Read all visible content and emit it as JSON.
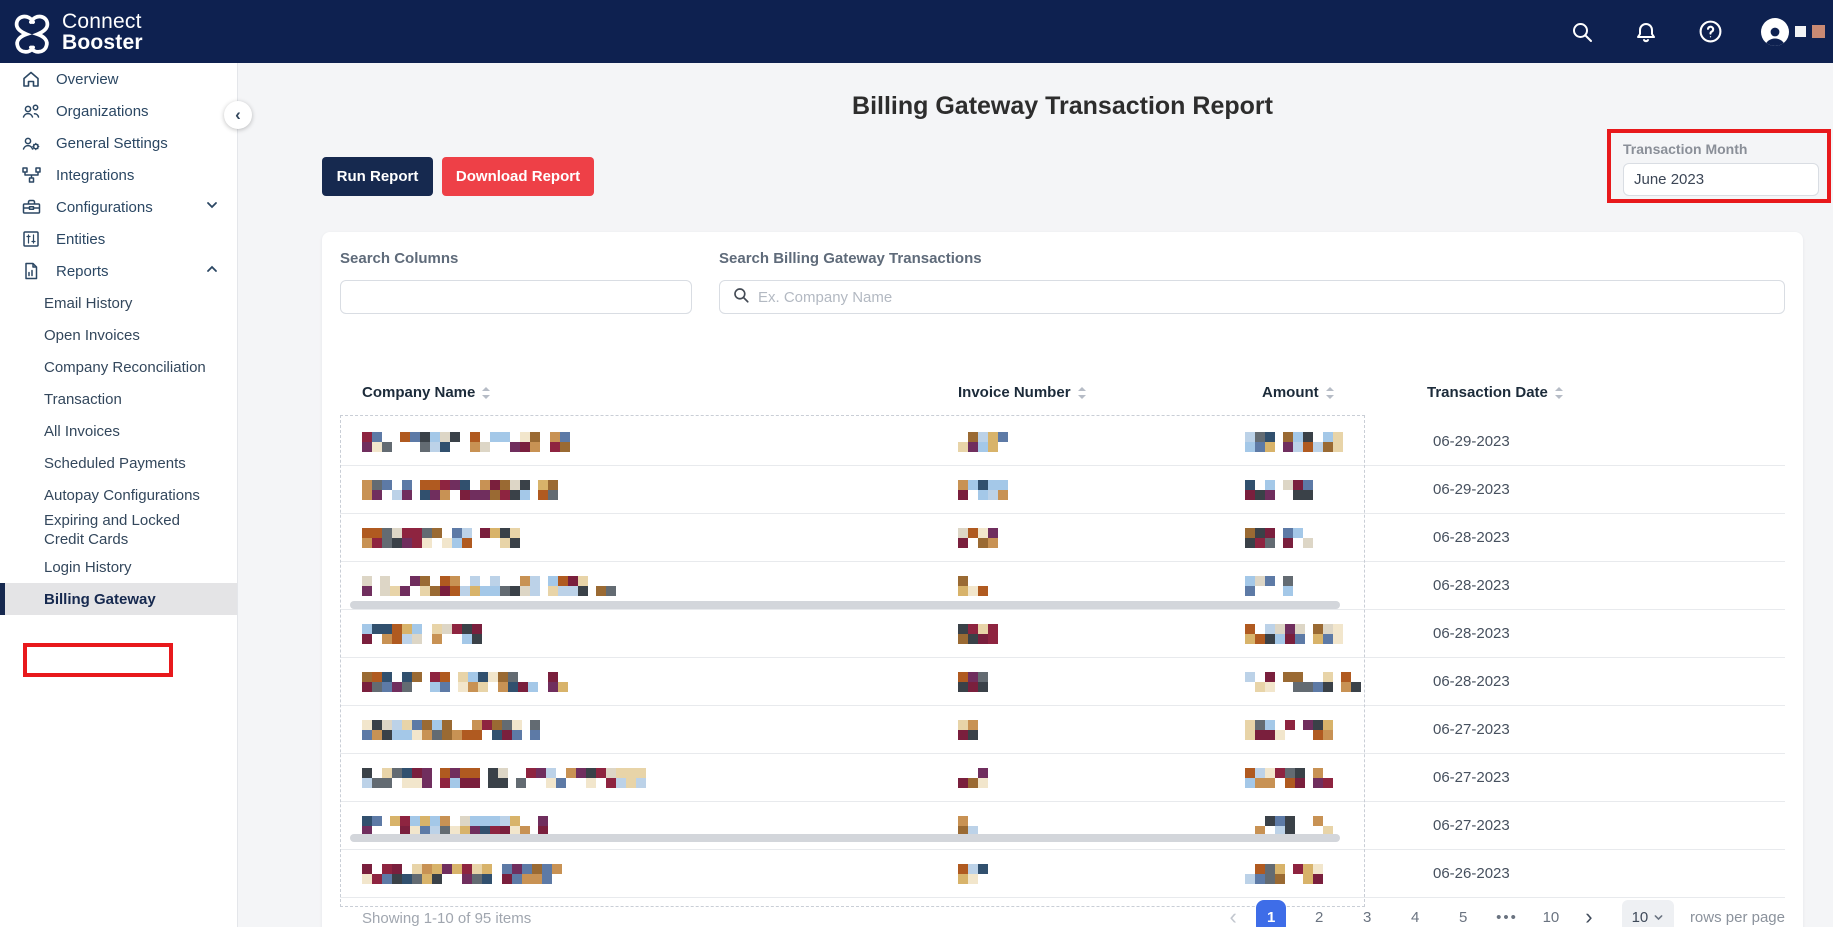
{
  "brand": {
    "line1": "Connect",
    "line2": "Booster"
  },
  "topbar": {
    "icons": [
      "search-icon",
      "bell-icon",
      "help-icon",
      "avatar"
    ]
  },
  "sidebar": {
    "items": [
      {
        "label": "Overview",
        "icon": "home"
      },
      {
        "label": "Organizations",
        "icon": "people"
      },
      {
        "label": "General Settings",
        "icon": "people-gear"
      },
      {
        "label": "Integrations",
        "icon": "integrations"
      },
      {
        "label": "Configurations",
        "icon": "toolbox",
        "chevron": "down"
      },
      {
        "label": "Entities",
        "icon": "entities"
      },
      {
        "label": "Reports",
        "icon": "report",
        "chevron": "up"
      }
    ],
    "report_children": [
      {
        "label": "Email History"
      },
      {
        "label": "Open Invoices"
      },
      {
        "label": "Company Reconciliation"
      },
      {
        "label": "Transaction"
      },
      {
        "label": "All Invoices"
      },
      {
        "label": "Scheduled Payments"
      },
      {
        "label": "Autopay Configurations"
      },
      {
        "label": "Expiring and Locked Credit Cards"
      },
      {
        "label": "Login History"
      },
      {
        "label": "Billing Gateway",
        "active": true
      }
    ]
  },
  "header": {
    "title": "Billing Gateway Transaction Report"
  },
  "toolbar": {
    "run_label": "Run Report",
    "download_label": "Download Report"
  },
  "filters": {
    "transaction_month_label": "Transaction Month",
    "transaction_month_value": "June 2023"
  },
  "search": {
    "columns_label": "Search Columns",
    "columns_value": "",
    "transactions_label": "Search Billing Gateway Transactions",
    "transactions_placeholder": "Ex. Company Name"
  },
  "table": {
    "columns": [
      "Company Name",
      "Invoice Number",
      "Amount",
      "Transaction Date"
    ],
    "rows": [
      {
        "transaction_date": "06-29-2023",
        "company": [
          26,
          170
        ],
        "invoice": [
          49
        ],
        "amount": [
          34,
          62
        ],
        "seed": 11
      },
      {
        "transaction_date": "06-29-2023",
        "company": [
          47,
          105,
          23
        ],
        "invoice": [
          50
        ],
        "amount": [
          26,
          30
        ],
        "seed": 22
      },
      {
        "transaction_date": "06-28-2023",
        "company": [
          111,
          35
        ],
        "invoice": [
          35
        ],
        "amount": [
          30,
          28
        ],
        "seed": 33
      },
      {
        "transaction_date": "06-28-2023",
        "company": [
          14,
          160,
          40,
          21
        ],
        "invoice": [
          30
        ],
        "amount": [
          28,
          12
        ],
        "seed": 44
      },
      {
        "transaction_date": "06-28-2023",
        "company": [
          123
        ],
        "invoice": [
          35
        ],
        "amount": [
          55,
          28
        ],
        "seed": 55
      },
      {
        "transaction_date": "06-28-2023",
        "company": [
          64,
          21,
          111
        ],
        "invoice": [
          28
        ],
        "amount": [
          30,
          45,
          20
        ],
        "seed": 66
      },
      {
        "transaction_date": "06-27-2023",
        "company": [
          164,
          14
        ],
        "invoice": [
          18
        ],
        "amount": [
          45,
          25
        ],
        "seed": 77
      },
      {
        "transaction_date": "06-27-2023",
        "company": [
          70,
          35,
          21,
          129
        ],
        "invoice": [
          30
        ],
        "amount": [
          55,
          22
        ],
        "seed": 88
      },
      {
        "transaction_date": "06-27-2023",
        "company": [
          21,
          140,
          14
        ],
        "invoice": [
          22
        ],
        "amount": [
          45,
          30
        ],
        "seed": 99
      },
      {
        "transaction_date": "06-26-2023",
        "company": [
          200
        ],
        "invoice": [
          28
        ],
        "amount": [
          40,
          25
        ],
        "seed": 110
      }
    ]
  },
  "pagination": {
    "summary": "Showing 1-10 of 95 items",
    "pages": [
      "1",
      "2",
      "3",
      "4",
      "5",
      "…",
      "10"
    ],
    "active_page": "1",
    "rows_per_page_value": "10",
    "rows_per_page_label": "rows per page"
  },
  "colors": {
    "topbar_navy": "#0e2150",
    "button_navy": "#16294f",
    "button_red": "#ee4047",
    "annotation_red": "#e8191c",
    "active_page_blue": "#3e6de8",
    "redaction_palette": [
      "#9a6a33",
      "#c89254",
      "#e8d4a8",
      "#31506e",
      "#a4c8e8",
      "#702e5e",
      "#8e2440",
      "#3a4148",
      "#ddd6c6",
      "#bcd2e8",
      "#5d7aa6",
      "#f2e6cc",
      "#636b72",
      "#b05a20",
      "#7a1f3d",
      "#d8b36a"
    ]
  }
}
